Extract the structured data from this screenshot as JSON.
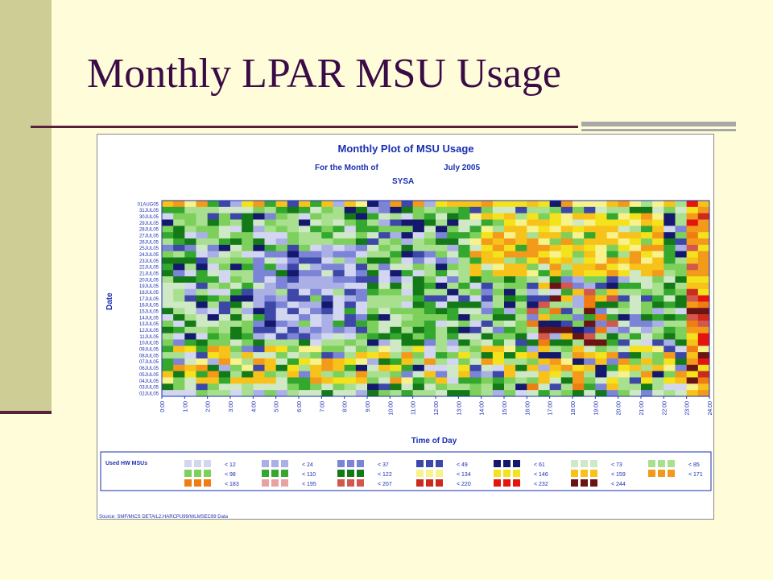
{
  "slide": {
    "title": "Monthly LPAR MSU Usage"
  },
  "chart_data": {
    "type": "heatmap",
    "title": "Monthly Plot of MSU Usage",
    "subtitle_label": "For the Month of",
    "subtitle_value": "July 2005",
    "system": "SYSA",
    "xlabel": "Time of Day",
    "ylabel": "Date",
    "x_ticks": [
      "0:00",
      "1:00",
      "2:00",
      "3:00",
      "4:00",
      "5:00",
      "6:00",
      "7:00",
      "8:00",
      "9:00",
      "10:00",
      "11:00",
      "12:00",
      "13:00",
      "14:00",
      "15:00",
      "16:00",
      "17:00",
      "18:00",
      "19:00",
      "20:00",
      "21:00",
      "22:00",
      "23:00",
      "24:00"
    ],
    "y_categories": [
      "01AUG05",
      "31JUL05",
      "30JUL05",
      "29JUL05",
      "28JUL05",
      "27JUL05",
      "26JUL05",
      "25JUL05",
      "24JUL05",
      "23JUL05",
      "22JUL05",
      "21JUL05",
      "20JUL05",
      "19JUL05",
      "18JUL05",
      "17JUL05",
      "16JUL05",
      "15JUL05",
      "14JUL05",
      "13JUL05",
      "12JUL05",
      "11JUL05",
      "10JUL05",
      "09JUL05",
      "08JUL05",
      "07JUL05",
      "06JUL05",
      "05JUL05",
      "04JUL05",
      "03JUL05",
      "02JUL05"
    ],
    "legend_title": "Used HW MSUs",
    "legend_bins": [
      {
        "label": "< 12",
        "color": "#d3d6f0"
      },
      {
        "label": "< 24",
        "color": "#aab0e6"
      },
      {
        "label": "< 37",
        "color": "#7b84d6"
      },
      {
        "label": "< 49",
        "color": "#3c47a8"
      },
      {
        "label": "< 61",
        "color": "#14196e"
      },
      {
        "label": "< 73",
        "color": "#cfe8c6"
      },
      {
        "label": "< 85",
        "color": "#a9e08f"
      },
      {
        "label": "< 98",
        "color": "#7ed05c"
      },
      {
        "label": "< 110",
        "color": "#34a82e"
      },
      {
        "label": "< 122",
        "color": "#137a17"
      },
      {
        "label": "< 134",
        "color": "#f7f28c"
      },
      {
        "label": "< 146",
        "color": "#f4e21c"
      },
      {
        "label": "< 159",
        "color": "#f7c21a"
      },
      {
        "label": "< 171",
        "color": "#f39a1a"
      },
      {
        "label": "< 183",
        "color": "#ef7d12"
      },
      {
        "label": "< 195",
        "color": "#e9a2a2"
      },
      {
        "label": "< 207",
        "color": "#d2584c"
      },
      {
        "label": "< 220",
        "color": "#cc2a1c"
      },
      {
        "label": "< 232",
        "color": "#e5140f"
      },
      {
        "label": "< 244",
        "color": "#6b1414"
      }
    ],
    "legend_rows": [
      [
        "< 12",
        "< 24",
        "< 37",
        "< 49",
        "< 61",
        "< 73",
        "< 85"
      ],
      [
        "< 98",
        "< 110",
        "< 122",
        "< 134",
        "< 146",
        "< 159",
        "< 171"
      ],
      [
        "< 183",
        "< 195",
        "< 207",
        "< 220",
        "< 232",
        "< 244"
      ]
    ],
    "source": "Source: SMF/MICS DETAIL2.HARCPU99/WLMSEC99 Data",
    "note": "Heatmap cells: 31 dates x 48 half-hour intervals, colored by MSU bin."
  }
}
